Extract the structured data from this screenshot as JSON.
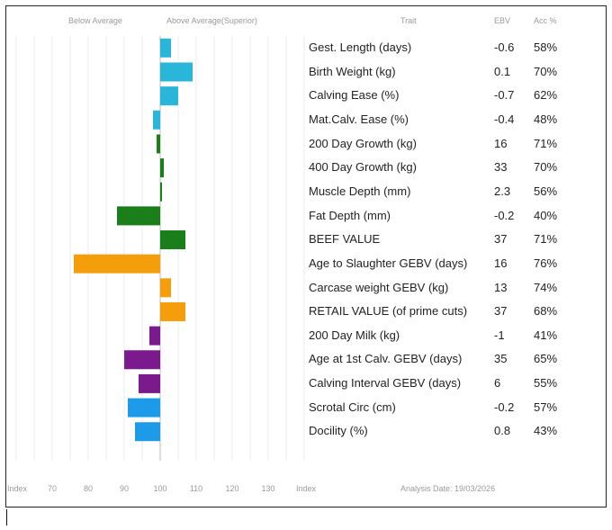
{
  "header": {
    "below_label": "Below Average",
    "above_label": "Above Average(Superior)",
    "trait_label": "Trait",
    "ebv_label": "EBV",
    "acc_label": "Acc %"
  },
  "footer": {
    "index_left": "Index",
    "index_right": "Index",
    "analysis_date": "Analysis Date: 19/03/2026"
  },
  "chart_data": {
    "type": "bar",
    "orientation": "horizontal",
    "baseline": 100,
    "xlim": [
      60,
      140
    ],
    "x_ticks": [
      70,
      80,
      90,
      100,
      110,
      120,
      130
    ],
    "grid": true,
    "categories": [
      "Gest. Length (days)",
      "Birth Weight (kg)",
      "Calving Ease (%)",
      "Mat.Calv. Ease (%)",
      "200 Day Growth (kg)",
      "400 Day Growth (kg)",
      "Muscle Depth (mm)",
      "Fat Depth (mm)",
      "BEEF VALUE",
      "Age to Slaughter GEBV (days)",
      "Carcase weight GEBV (kg)",
      "RETAIL VALUE (of prime cuts)",
      "200 Day Milk (kg)",
      "Age at 1st Calv. GEBV (days)",
      "Calving Interval GEBV (days)",
      "Scrotal Circ (cm)",
      "Docility (%)"
    ],
    "index_values": [
      103,
      109,
      105,
      98,
      99,
      101,
      100.5,
      88,
      107,
      76,
      103,
      107,
      97,
      90,
      94,
      91,
      93
    ],
    "ebv": [
      "-0.6",
      "0.1",
      "-0.7",
      "-0.4",
      "16",
      "33",
      "2.3",
      "-0.2",
      "37",
      "16",
      "13",
      "37",
      "-1",
      "35",
      "6",
      "-0.2",
      "0.8"
    ],
    "acc": [
      "58%",
      "70%",
      "62%",
      "48%",
      "71%",
      "70%",
      "56%",
      "40%",
      "71%",
      "76%",
      "74%",
      "68%",
      "41%",
      "65%",
      "55%",
      "57%",
      "43%"
    ],
    "colors": [
      "#29b6d8",
      "#29b6d8",
      "#29b6d8",
      "#29b6d8",
      "#1a7f1a",
      "#1a7f1a",
      "#1a7f1a",
      "#1a7f1a",
      "#1a7f1a",
      "#f59e0b",
      "#f59e0b",
      "#f59e0b",
      "#7a1a8c",
      "#7a1a8c",
      "#7a1a8c",
      "#1e9be8",
      "#1e9be8"
    ]
  }
}
